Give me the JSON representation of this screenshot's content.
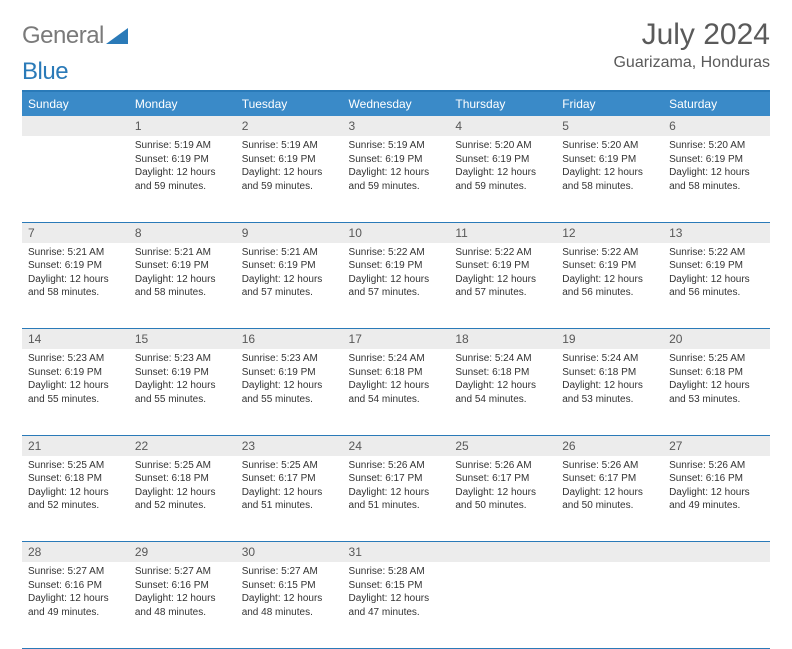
{
  "logo": {
    "text1": "General",
    "text2": "Blue"
  },
  "title": "July 2024",
  "location": "Guarizama, Honduras",
  "colors": {
    "header_bg": "#3a8ac8",
    "header_text": "#ffffff",
    "border": "#2a7ab8",
    "daynum_bg": "#ececec",
    "logo_gray": "#7a7a7a",
    "logo_blue": "#2a7ab8",
    "body_text": "#333333"
  },
  "weekdays": [
    "Sunday",
    "Monday",
    "Tuesday",
    "Wednesday",
    "Thursday",
    "Friday",
    "Saturday"
  ],
  "start_offset": 1,
  "days": [
    {
      "n": "1",
      "sr": "5:19 AM",
      "ss": "6:19 PM",
      "dl": "12 hours and 59 minutes."
    },
    {
      "n": "2",
      "sr": "5:19 AM",
      "ss": "6:19 PM",
      "dl": "12 hours and 59 minutes."
    },
    {
      "n": "3",
      "sr": "5:19 AM",
      "ss": "6:19 PM",
      "dl": "12 hours and 59 minutes."
    },
    {
      "n": "4",
      "sr": "5:20 AM",
      "ss": "6:19 PM",
      "dl": "12 hours and 59 minutes."
    },
    {
      "n": "5",
      "sr": "5:20 AM",
      "ss": "6:19 PM",
      "dl": "12 hours and 58 minutes."
    },
    {
      "n": "6",
      "sr": "5:20 AM",
      "ss": "6:19 PM",
      "dl": "12 hours and 58 minutes."
    },
    {
      "n": "7",
      "sr": "5:21 AM",
      "ss": "6:19 PM",
      "dl": "12 hours and 58 minutes."
    },
    {
      "n": "8",
      "sr": "5:21 AM",
      "ss": "6:19 PM",
      "dl": "12 hours and 58 minutes."
    },
    {
      "n": "9",
      "sr": "5:21 AM",
      "ss": "6:19 PM",
      "dl": "12 hours and 57 minutes."
    },
    {
      "n": "10",
      "sr": "5:22 AM",
      "ss": "6:19 PM",
      "dl": "12 hours and 57 minutes."
    },
    {
      "n": "11",
      "sr": "5:22 AM",
      "ss": "6:19 PM",
      "dl": "12 hours and 57 minutes."
    },
    {
      "n": "12",
      "sr": "5:22 AM",
      "ss": "6:19 PM",
      "dl": "12 hours and 56 minutes."
    },
    {
      "n": "13",
      "sr": "5:22 AM",
      "ss": "6:19 PM",
      "dl": "12 hours and 56 minutes."
    },
    {
      "n": "14",
      "sr": "5:23 AM",
      "ss": "6:19 PM",
      "dl": "12 hours and 55 minutes."
    },
    {
      "n": "15",
      "sr": "5:23 AM",
      "ss": "6:19 PM",
      "dl": "12 hours and 55 minutes."
    },
    {
      "n": "16",
      "sr": "5:23 AM",
      "ss": "6:19 PM",
      "dl": "12 hours and 55 minutes."
    },
    {
      "n": "17",
      "sr": "5:24 AM",
      "ss": "6:18 PM",
      "dl": "12 hours and 54 minutes."
    },
    {
      "n": "18",
      "sr": "5:24 AM",
      "ss": "6:18 PM",
      "dl": "12 hours and 54 minutes."
    },
    {
      "n": "19",
      "sr": "5:24 AM",
      "ss": "6:18 PM",
      "dl": "12 hours and 53 minutes."
    },
    {
      "n": "20",
      "sr": "5:25 AM",
      "ss": "6:18 PM",
      "dl": "12 hours and 53 minutes."
    },
    {
      "n": "21",
      "sr": "5:25 AM",
      "ss": "6:18 PM",
      "dl": "12 hours and 52 minutes."
    },
    {
      "n": "22",
      "sr": "5:25 AM",
      "ss": "6:18 PM",
      "dl": "12 hours and 52 minutes."
    },
    {
      "n": "23",
      "sr": "5:25 AM",
      "ss": "6:17 PM",
      "dl": "12 hours and 51 minutes."
    },
    {
      "n": "24",
      "sr": "5:26 AM",
      "ss": "6:17 PM",
      "dl": "12 hours and 51 minutes."
    },
    {
      "n": "25",
      "sr": "5:26 AM",
      "ss": "6:17 PM",
      "dl": "12 hours and 50 minutes."
    },
    {
      "n": "26",
      "sr": "5:26 AM",
      "ss": "6:17 PM",
      "dl": "12 hours and 50 minutes."
    },
    {
      "n": "27",
      "sr": "5:26 AM",
      "ss": "6:16 PM",
      "dl": "12 hours and 49 minutes."
    },
    {
      "n": "28",
      "sr": "5:27 AM",
      "ss": "6:16 PM",
      "dl": "12 hours and 49 minutes."
    },
    {
      "n": "29",
      "sr": "5:27 AM",
      "ss": "6:16 PM",
      "dl": "12 hours and 48 minutes."
    },
    {
      "n": "30",
      "sr": "5:27 AM",
      "ss": "6:15 PM",
      "dl": "12 hours and 48 minutes."
    },
    {
      "n": "31",
      "sr": "5:28 AM",
      "ss": "6:15 PM",
      "dl": "12 hours and 47 minutes."
    }
  ],
  "labels": {
    "sunrise": "Sunrise:",
    "sunset": "Sunset:",
    "daylight": "Daylight:"
  }
}
